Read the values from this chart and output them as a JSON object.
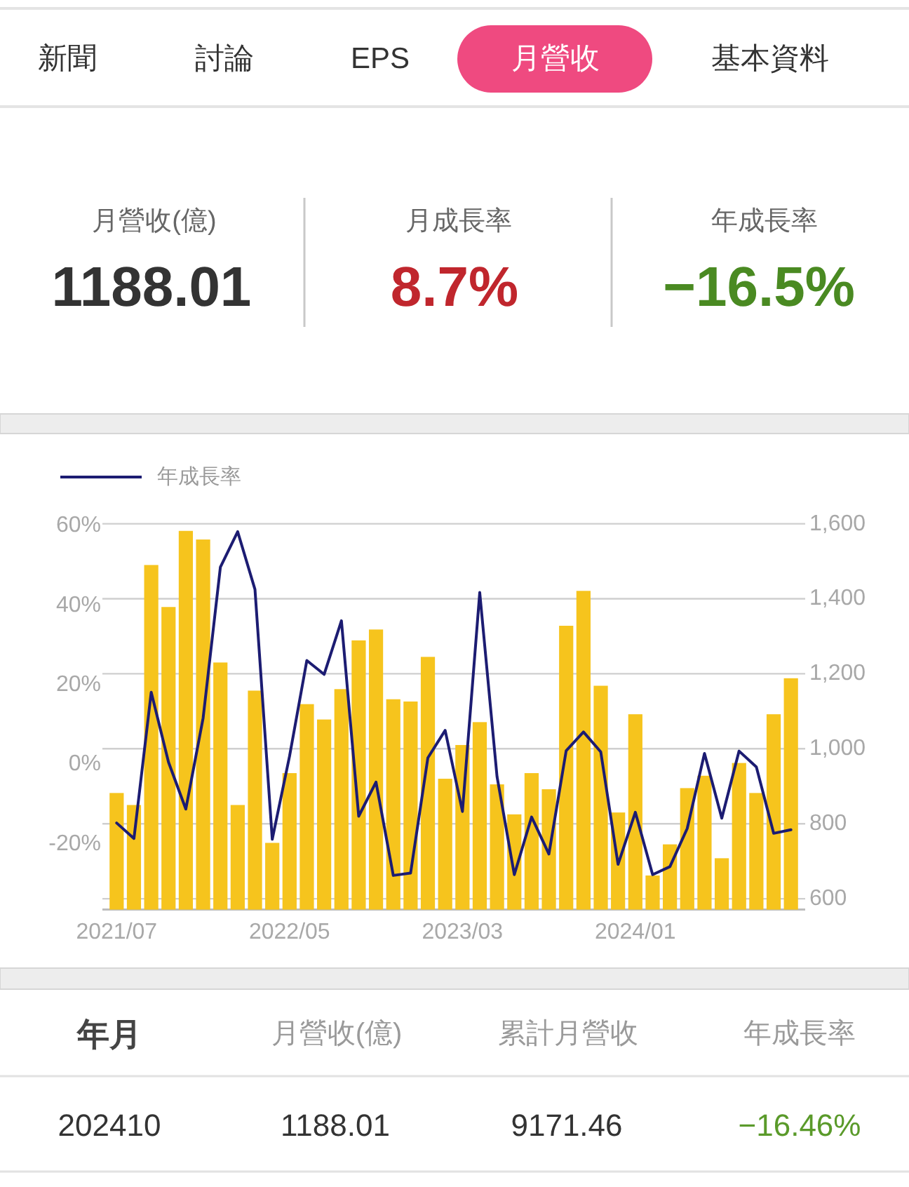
{
  "chart_data": {
    "type": "bar",
    "categories": [
      "2021/07",
      null,
      null,
      null,
      null,
      null,
      null,
      null,
      null,
      null,
      "2022/05",
      null,
      null,
      null,
      null,
      null,
      null,
      null,
      null,
      null,
      "2023/03",
      null,
      null,
      null,
      null,
      null,
      null,
      null,
      null,
      null,
      "2024/01",
      null,
      null,
      null,
      null,
      null,
      null,
      null,
      null,
      null
    ],
    "series": [
      {
        "color": "#f6c41d",
        "values": [
          882,
          850,
          1490,
          1378,
          1581,
          1558,
          1230,
          850,
          1155,
          749,
          935,
          1119,
          1078,
          1159,
          1289,
          1318,
          1132,
          1126,
          1245,
          920,
          1010,
          1071,
          905,
          825,
          935,
          892,
          1328,
          1421,
          1168,
          830,
          1092,
          662,
          745,
          895,
          928,
          708,
          962,
          882,
          1092,
          1188
        ]
      },
      {
        "type": "line",
        "name": "年成長率",
        "color": "#1c1c72",
        "axis": "y2",
        "values": [
          -14.8,
          -18.7,
          18.1,
          0.5,
          -11.3,
          11.6,
          49.6,
          58.5,
          44,
          -18.9,
          2,
          26.1,
          22.6,
          36.1,
          -13.1,
          -4.5,
          -28,
          -27.4,
          1.6,
          8.5,
          -11.9,
          43.2,
          -3.1,
          -27.8,
          -13.3,
          -22.6,
          3.4,
          8.1,
          3.1,
          -25.2,
          -12.1,
          -27.8,
          -25.8,
          -16.2,
          2.7,
          -13.6,
          3.3,
          -0.7,
          -17.4,
          -16.5
        ]
      }
    ],
    "ylim": [
      571,
      1600
    ],
    "yticks": [
      600,
      800,
      {
        "value": 1000,
        "label": "1,000"
      },
      {
        "value": 1200,
        "label": "1,200"
      },
      {
        "value": 1400,
        "label": "1,400"
      },
      {
        "value": 1600,
        "label": "1,600"
      }
    ],
    "y2lim": [
      -36.6,
      60.5
    ],
    "y2ticks": [
      {
        "value": -20,
        "label": "-20%"
      },
      {
        "value": 0,
        "label": "0%"
      },
      {
        "value": 20,
        "label": "20%"
      },
      {
        "value": 40,
        "label": "40%"
      },
      {
        "value": 60,
        "label": "60%"
      }
    ],
    "grid": "y",
    "legend": "top left",
    "line_style": "solid",
    "annotations": [
      "新聞",
      "討論",
      "EPS",
      "月營收",
      "基本資料",
      "月營收(億)",
      "1188.01",
      "月成長率",
      "8.7%",
      "年成長率",
      "−16.5%",
      "年月",
      "月營收(億)",
      "累計月營收",
      "年成長率",
      "202410",
      "1188.01",
      "9171.46",
      "−16.46%"
    ]
  }
}
